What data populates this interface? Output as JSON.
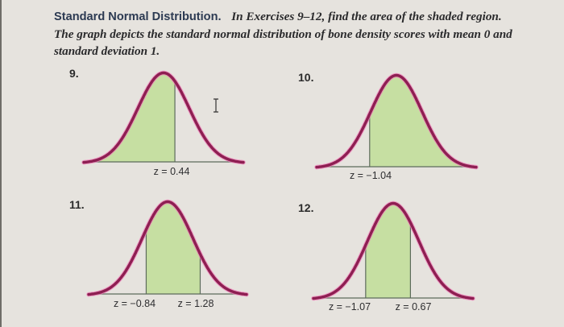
{
  "intro": {
    "lead": "Standard Normal Distribution.",
    "line1": "In Exercises 9–12, find the area of the shaded region.",
    "line2": "The graph depicts the standard normal distribution of bone density scores with mean 0 and",
    "line3": "standard deviation 1."
  },
  "colors": {
    "curve": "#8e1f52",
    "curve_glow": "#f07ab8",
    "shade": "#c6dfa2",
    "axis": "#5d6b5c",
    "background": "#e6e3de"
  },
  "exercises": [
    {
      "number": "9.",
      "labels": [
        "z = 0.44"
      ]
    },
    {
      "number": "10.",
      "labels": [
        "z = −1.04"
      ]
    },
    {
      "number": "11.",
      "labels": [
        "z = −0.84",
        "z = 1.28"
      ]
    },
    {
      "number": "12.",
      "labels": [
        "z = −1.07",
        "z = 0.67"
      ]
    }
  ],
  "chart_data": [
    {
      "type": "area",
      "title": "9.",
      "distribution": "standard normal",
      "mean": 0,
      "sd": 1,
      "shaded_region": {
        "from": "-inf",
        "to": 0.44
      },
      "annotations": [
        "z = 0.44"
      ],
      "xlabel": "",
      "ylabel": "",
      "grid": false
    },
    {
      "type": "area",
      "title": "10.",
      "distribution": "standard normal",
      "mean": 0,
      "sd": 1,
      "shaded_region": {
        "from": -1.04,
        "to": "inf"
      },
      "annotations": [
        "z = −1.04"
      ],
      "xlabel": "",
      "ylabel": "",
      "grid": false
    },
    {
      "type": "area",
      "title": "11.",
      "distribution": "standard normal",
      "mean": 0,
      "sd": 1,
      "shaded_region": {
        "from": -0.84,
        "to": 1.28
      },
      "annotations": [
        "z = −0.84",
        "z = 1.28"
      ],
      "xlabel": "",
      "ylabel": "",
      "grid": false
    },
    {
      "type": "area",
      "title": "12.",
      "distribution": "standard normal",
      "mean": 0,
      "sd": 1,
      "shaded_region": {
        "from": -1.07,
        "to": 0.67
      },
      "annotations": [
        "z = −1.07",
        "z = 0.67"
      ],
      "xlabel": "",
      "ylabel": "",
      "grid": false
    }
  ]
}
